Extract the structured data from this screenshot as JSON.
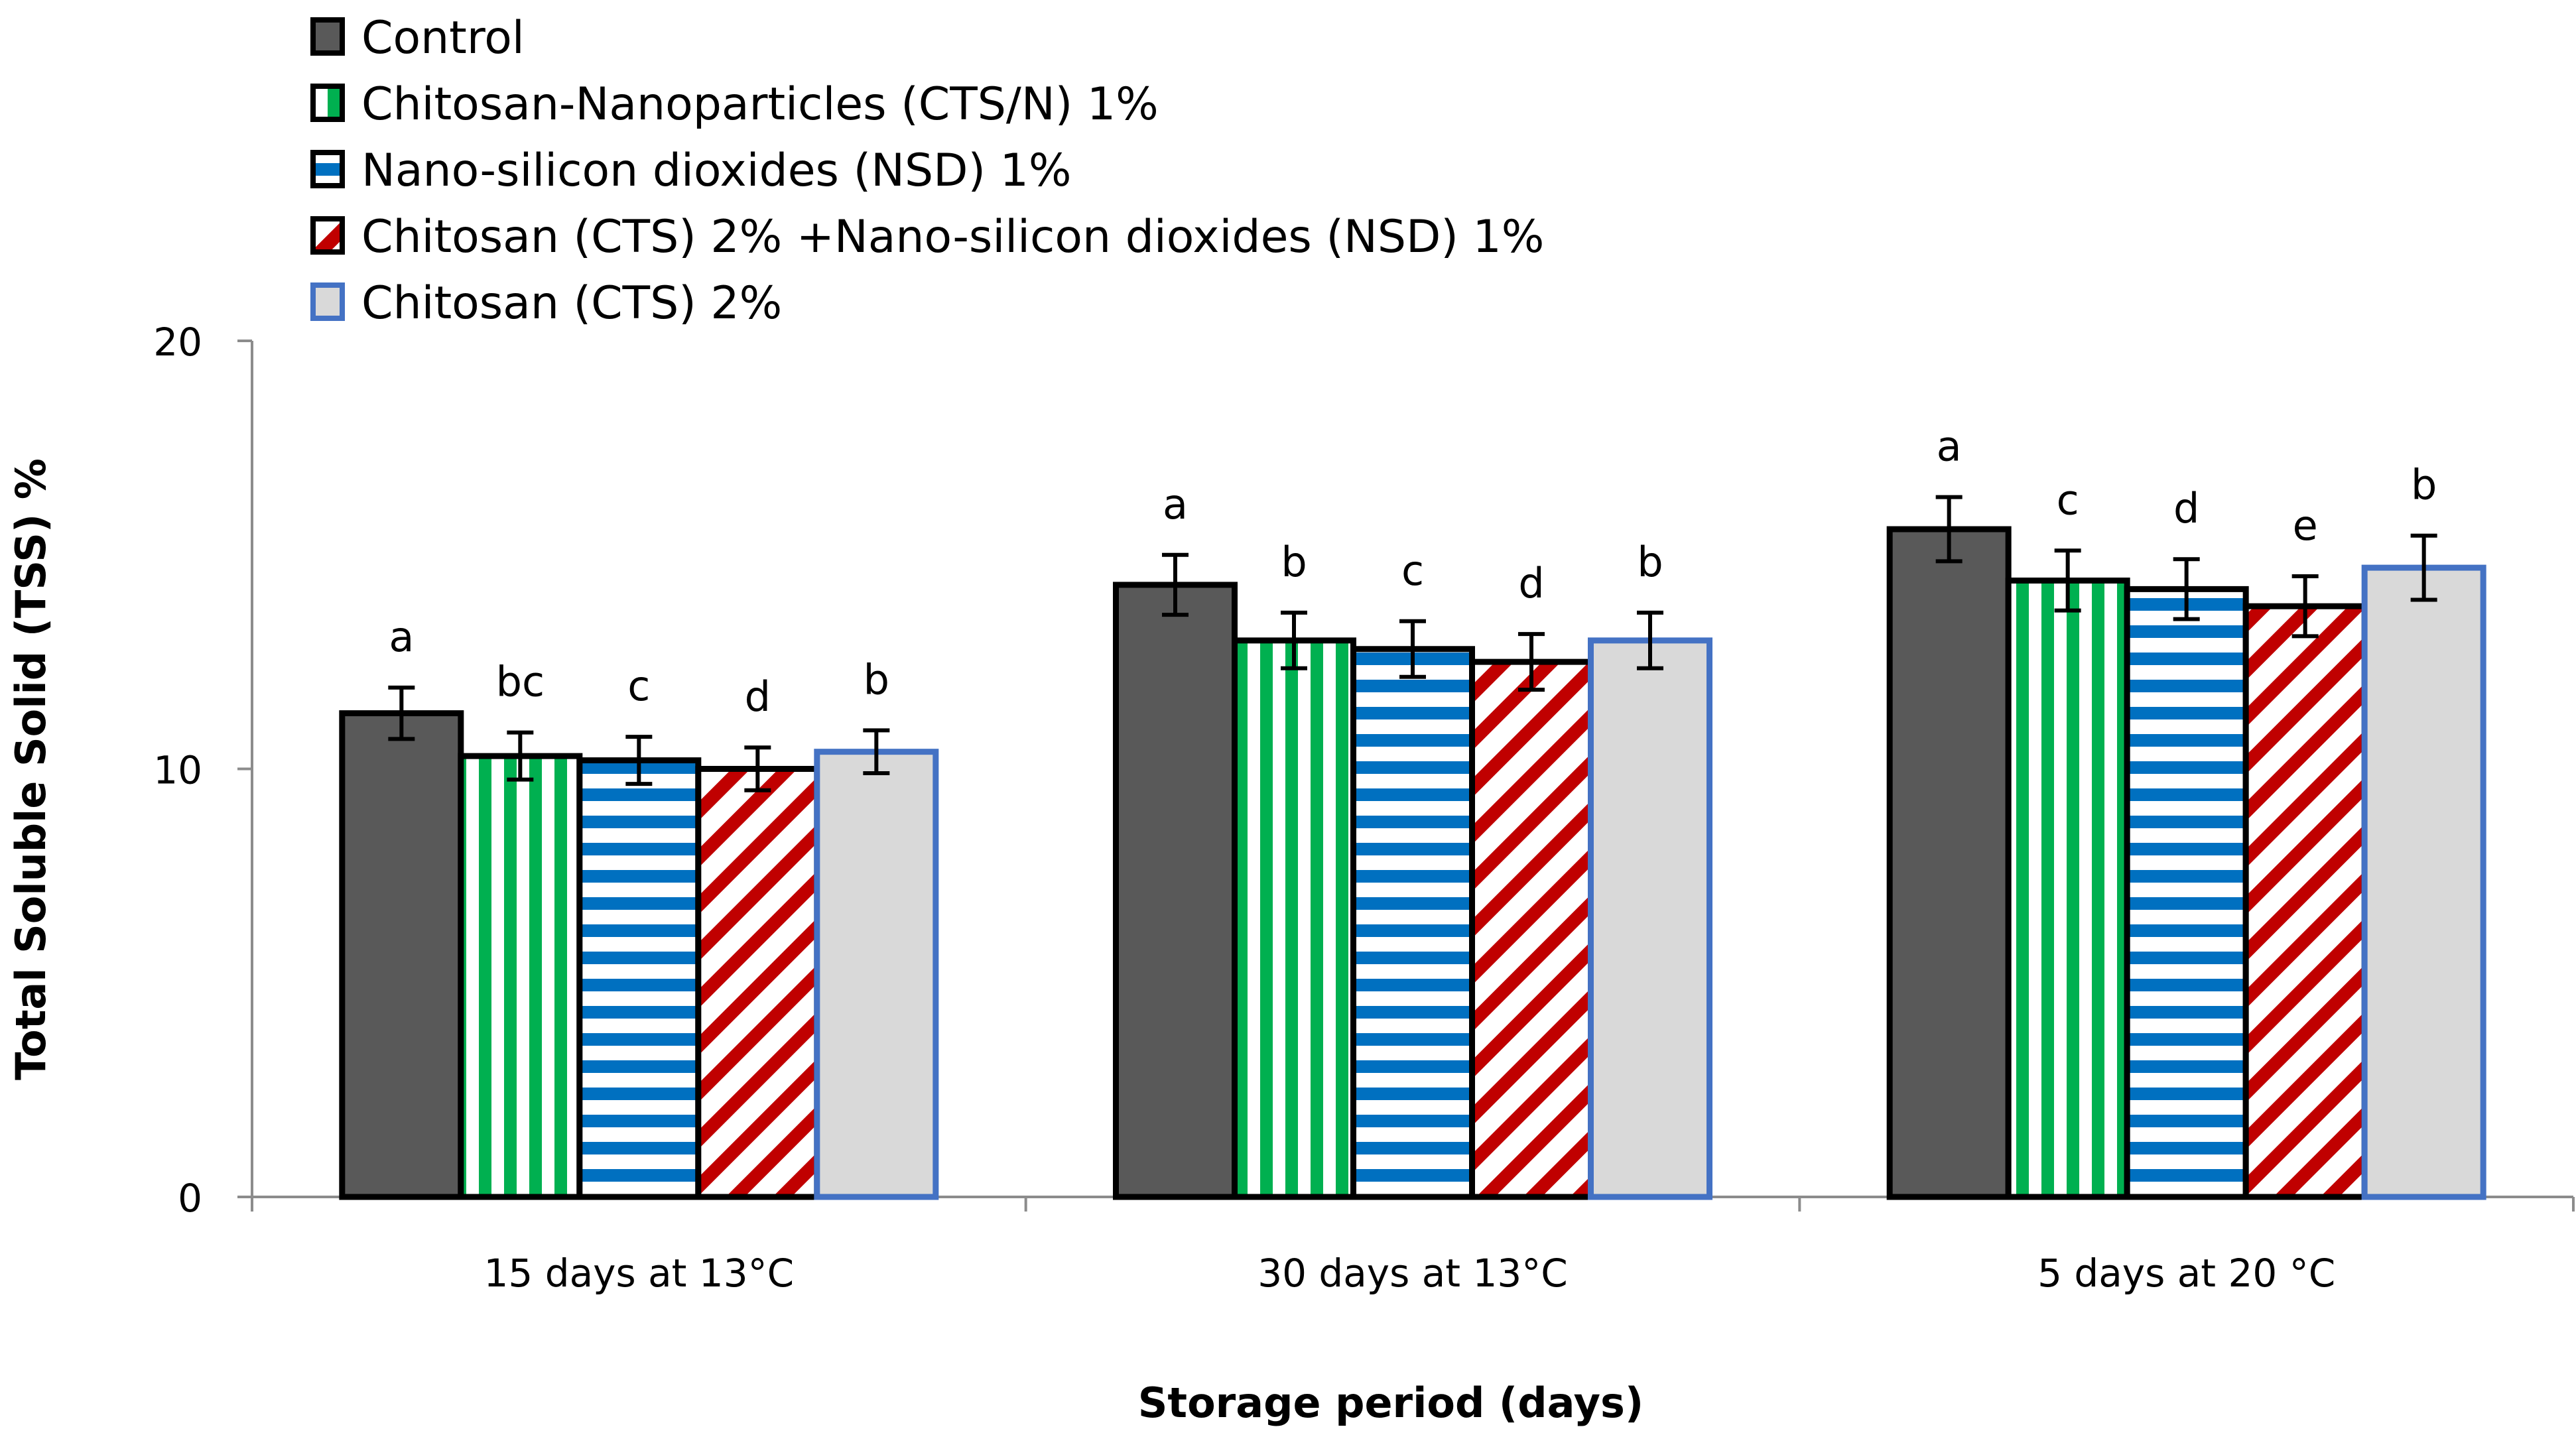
{
  "chart_data": {
    "type": "bar",
    "title": "",
    "xlabel": "Storage period (days)",
    "ylabel": "Total Soluble Solid (TSS) %",
    "ylim": [
      0,
      20
    ],
    "yticks": [
      "0",
      "10",
      "20"
    ],
    "grid": false,
    "legend_position": "top-left",
    "categories": [
      "15 days at 13°C",
      "30 days at 13°C",
      "5 days at 20 °C"
    ],
    "series": [
      {
        "name": "Control",
        "fill": "#595959",
        "stroke": "#000000",
        "pattern": "solid",
        "values": [
          11.3,
          14.3,
          15.6
        ],
        "errors": [
          0.6,
          0.7,
          0.75
        ],
        "letters": [
          "a",
          "a",
          "a"
        ]
      },
      {
        "name": "Chitosan-Nanoparticles (CTS/N) 1%",
        "fill": "#00b050",
        "stroke": "#000000",
        "pattern": "vertical",
        "values": [
          10.3,
          13.0,
          14.4
        ],
        "errors": [
          0.55,
          0.65,
          0.7
        ],
        "letters": [
          "bc",
          "b",
          "c"
        ]
      },
      {
        "name": "Nano-silicon dioxides  (NSD) 1%",
        "fill": "#0070c0",
        "stroke": "#000000",
        "pattern": "horizontal",
        "values": [
          10.2,
          12.8,
          14.2
        ],
        "errors": [
          0.55,
          0.65,
          0.7
        ],
        "letters": [
          "c",
          "c",
          "d"
        ]
      },
      {
        "name": "Chitosan (CTS) 2% +Nano-silicon dioxides  (NSD) 1%",
        "fill": "#c00000",
        "stroke": "#000000",
        "pattern": "diagonal",
        "values": [
          10.0,
          12.5,
          13.8
        ],
        "errors": [
          0.5,
          0.65,
          0.7
        ],
        "letters": [
          "d",
          "d",
          "e"
        ]
      },
      {
        "name": "Chitosan (CTS) 2%",
        "fill": "#d9d9d9",
        "stroke": "#4472c4",
        "pattern": "solid",
        "values": [
          10.4,
          13.0,
          14.7
        ],
        "errors": [
          0.5,
          0.65,
          0.75
        ],
        "letters": [
          "b",
          "b",
          "b"
        ]
      }
    ]
  }
}
